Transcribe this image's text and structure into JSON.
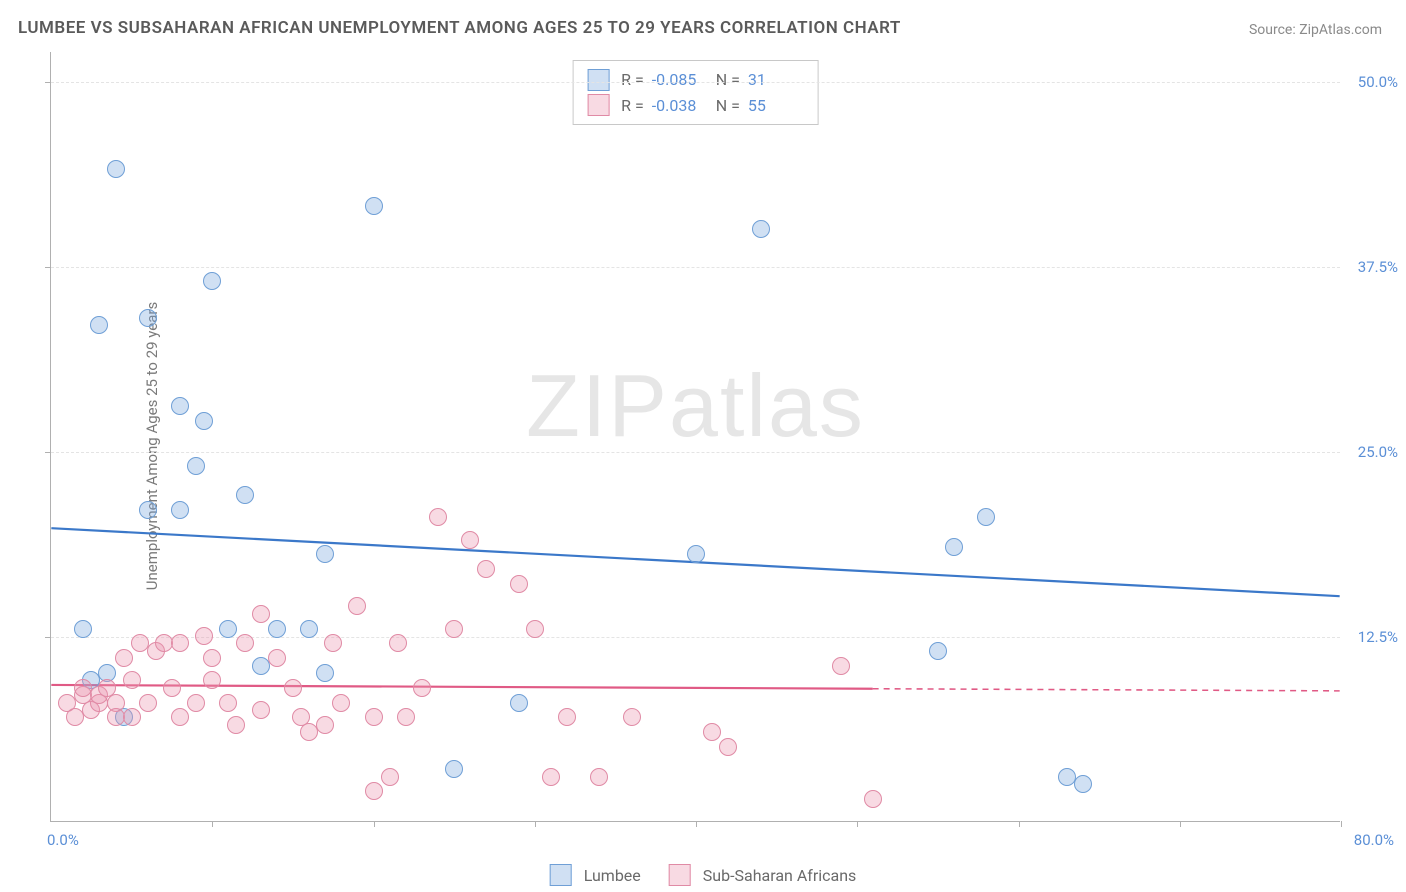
{
  "title": "LUMBEE VS SUBSAHARAN AFRICAN UNEMPLOYMENT AMONG AGES 25 TO 29 YEARS CORRELATION CHART",
  "source": "Source: ZipAtlas.com",
  "y_axis_label": "Unemployment Among Ages 25 to 29 years",
  "watermark_a": "ZIP",
  "watermark_b": "atlas",
  "chart": {
    "type": "scatter",
    "xlim": [
      0,
      80
    ],
    "ylim": [
      0,
      52
    ],
    "x_tick_positions": [
      10,
      20,
      30,
      40,
      50,
      60,
      70,
      80
    ],
    "y_gridlines": [
      12.5,
      25,
      37.5,
      50
    ],
    "y_tick_labels": [
      "12.5%",
      "25.0%",
      "37.5%",
      "50.0%"
    ],
    "x_label_min": "0.0%",
    "x_label_max": "80.0%",
    "background_color": "#ffffff",
    "grid_color": "#e4e4e4",
    "axis_color": "#b0b0b0",
    "tick_label_color": "#5b8fd6",
    "point_radius": 9,
    "series": [
      {
        "name": "Lumbee",
        "fill": "rgba(120,165,220,0.35)",
        "stroke": "#6f9fd6",
        "line_color": "#3b78c9",
        "line_width": 2.2,
        "r_value": "-0.085",
        "n_value": "31",
        "trend": {
          "x1": 0,
          "y1": 19.8,
          "x2": 80,
          "y2": 15.2,
          "x_solid_max": 80
        },
        "points": [
          [
            2,
            13
          ],
          [
            2.5,
            9.5
          ],
          [
            3,
            33.5
          ],
          [
            3.5,
            10
          ],
          [
            4,
            44
          ],
          [
            4.5,
            7
          ],
          [
            6,
            34
          ],
          [
            6,
            21
          ],
          [
            8,
            21
          ],
          [
            8,
            28
          ],
          [
            9,
            24
          ],
          [
            9.5,
            27
          ],
          [
            10,
            36.5
          ],
          [
            12,
            22
          ],
          [
            11,
            13
          ],
          [
            13,
            10.5
          ],
          [
            14,
            13
          ],
          [
            16,
            13
          ],
          [
            17,
            18
          ],
          [
            17,
            10
          ],
          [
            20,
            41.5
          ],
          [
            25,
            3.5
          ],
          [
            29,
            8
          ],
          [
            40,
            18
          ],
          [
            44,
            40
          ],
          [
            55,
            11.5
          ],
          [
            56,
            18.5
          ],
          [
            58,
            20.5
          ],
          [
            63,
            3
          ],
          [
            64,
            2.5
          ]
        ]
      },
      {
        "name": "Sub-Saharan Africans",
        "fill": "rgba(235,150,175,0.35)",
        "stroke": "#e08aa5",
        "line_color": "#e05a85",
        "line_width": 2.2,
        "r_value": "-0.038",
        "n_value": "55",
        "trend": {
          "x1": 0,
          "y1": 9.2,
          "x2": 80,
          "y2": 8.8,
          "x_solid_max": 51
        },
        "points": [
          [
            1,
            8
          ],
          [
            1.5,
            7
          ],
          [
            2,
            8.5
          ],
          [
            2,
            9
          ],
          [
            2.5,
            7.5
          ],
          [
            3,
            8
          ],
          [
            3,
            8.5
          ],
          [
            3.5,
            9
          ],
          [
            4,
            8
          ],
          [
            4,
            7
          ],
          [
            4.5,
            11
          ],
          [
            5,
            9.5
          ],
          [
            5,
            7
          ],
          [
            5.5,
            12
          ],
          [
            6,
            8
          ],
          [
            6.5,
            11.5
          ],
          [
            7,
            12
          ],
          [
            7.5,
            9
          ],
          [
            8,
            12
          ],
          [
            8,
            7
          ],
          [
            9,
            8
          ],
          [
            9.5,
            12.5
          ],
          [
            10,
            11
          ],
          [
            10,
            9.5
          ],
          [
            11,
            8
          ],
          [
            11.5,
            6.5
          ],
          [
            12,
            12
          ],
          [
            13,
            14
          ],
          [
            13,
            7.5
          ],
          [
            14,
            11
          ],
          [
            15,
            9
          ],
          [
            15.5,
            7
          ],
          [
            16,
            6
          ],
          [
            17,
            6.5
          ],
          [
            17.5,
            12
          ],
          [
            18,
            8
          ],
          [
            19,
            14.5
          ],
          [
            20,
            7
          ],
          [
            20,
            2
          ],
          [
            21,
            3
          ],
          [
            21.5,
            12
          ],
          [
            22,
            7
          ],
          [
            23,
            9
          ],
          [
            24,
            20.5
          ],
          [
            25,
            13
          ],
          [
            26,
            19
          ],
          [
            27,
            17
          ],
          [
            29,
            16
          ],
          [
            30,
            13
          ],
          [
            31,
            3
          ],
          [
            32,
            7
          ],
          [
            34,
            3
          ],
          [
            36,
            7
          ],
          [
            41,
            6
          ],
          [
            42,
            5
          ],
          [
            49,
            10.5
          ],
          [
            51,
            1.5
          ]
        ]
      }
    ]
  },
  "stats_legend": {
    "r_label": "R =",
    "n_label": "N ="
  },
  "bottom_legend": {
    "items": [
      "Lumbee",
      "Sub-Saharan Africans"
    ]
  }
}
